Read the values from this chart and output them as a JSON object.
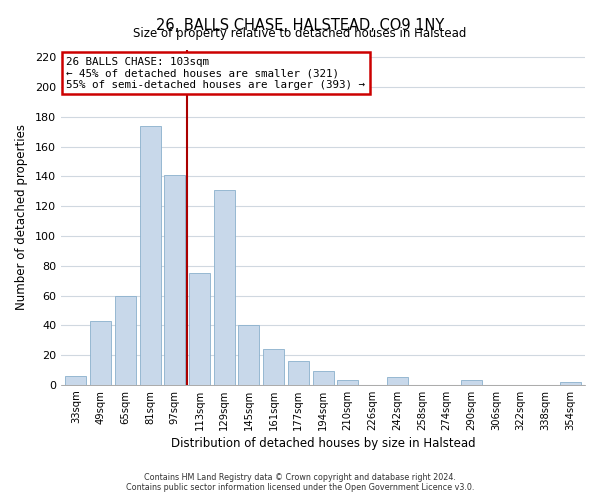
{
  "title": "26, BALLS CHASE, HALSTEAD, CO9 1NY",
  "subtitle": "Size of property relative to detached houses in Halstead",
  "xlabel": "Distribution of detached houses by size in Halstead",
  "ylabel": "Number of detached properties",
  "bar_labels": [
    "33sqm",
    "49sqm",
    "65sqm",
    "81sqm",
    "97sqm",
    "113sqm",
    "129sqm",
    "145sqm",
    "161sqm",
    "177sqm",
    "194sqm",
    "210sqm",
    "226sqm",
    "242sqm",
    "258sqm",
    "274sqm",
    "290sqm",
    "306sqm",
    "322sqm",
    "338sqm",
    "354sqm"
  ],
  "bar_values": [
    6,
    43,
    60,
    174,
    141,
    75,
    131,
    40,
    24,
    16,
    9,
    3,
    0,
    5,
    0,
    0,
    3,
    0,
    0,
    0,
    2
  ],
  "bar_color": "#c8d8ea",
  "bar_edge_color": "#8ab0cc",
  "ylim": [
    0,
    225
  ],
  "yticks": [
    0,
    20,
    40,
    60,
    80,
    100,
    120,
    140,
    160,
    180,
    200,
    220
  ],
  "vline_x_index": 4,
  "vline_color": "#aa0000",
  "annotation_title": "26 BALLS CHASE: 103sqm",
  "annotation_line1": "← 45% of detached houses are smaller (321)",
  "annotation_line2": "55% of semi-detached houses are larger (393) →",
  "annotation_box_color": "#ffffff",
  "annotation_box_edge": "#cc0000",
  "footer1": "Contains HM Land Registry data © Crown copyright and database right 2024.",
  "footer2": "Contains public sector information licensed under the Open Government Licence v3.0.",
  "background_color": "#ffffff",
  "plot_background": "#ffffff",
  "grid_color": "#d0d8e0"
}
